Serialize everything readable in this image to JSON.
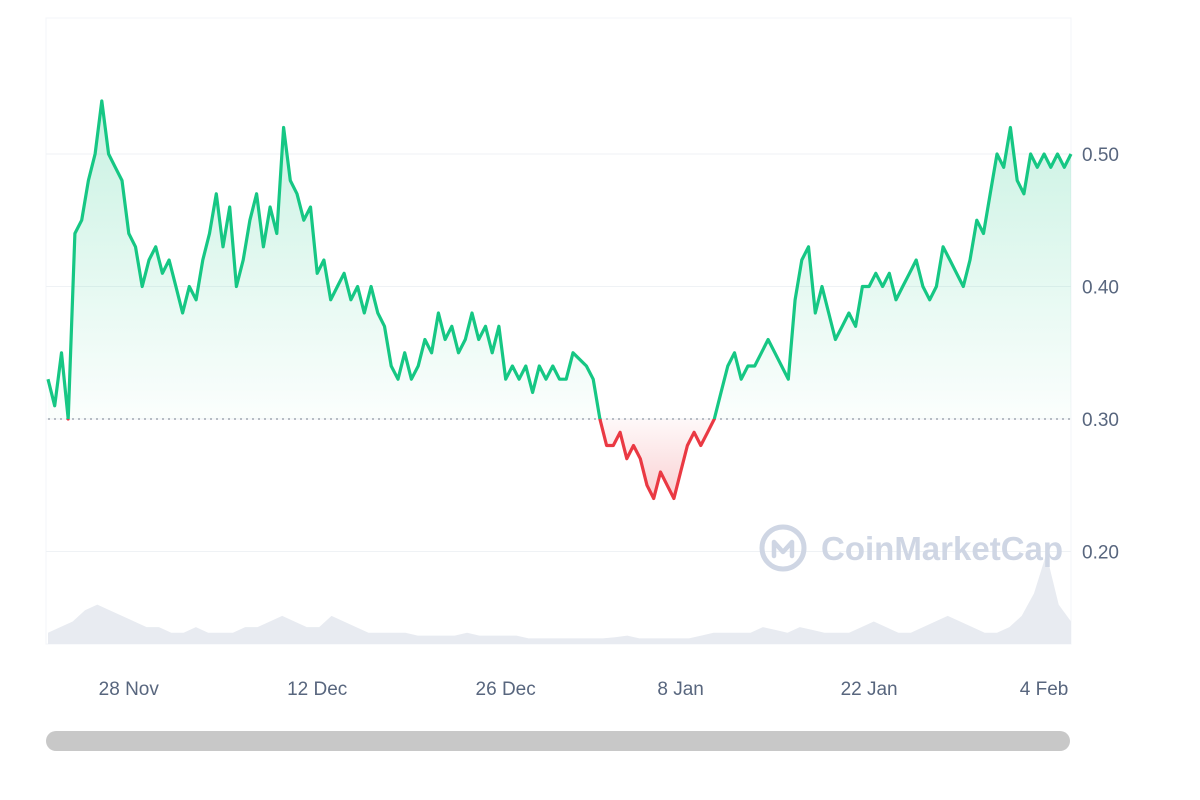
{
  "chart_data": {
    "type": "line",
    "title": "",
    "xlabel": "",
    "ylabel": "",
    "ylim": [
      0.14,
      0.59
    ],
    "baseline": 0.3,
    "grid": true,
    "colors": {
      "up": "#16c784",
      "down": "#ea3943",
      "volume": "#e8ebf1",
      "grid": "#eff2f5"
    },
    "x_ticks": [
      {
        "date": "2023-11-28",
        "label": "28 Nov"
      },
      {
        "date": "2023-12-12",
        "label": "12 Dec"
      },
      {
        "date": "2023-12-26",
        "label": "26 Dec"
      },
      {
        "date": "2024-01-08",
        "label": "8 Jan"
      },
      {
        "date": "2024-01-22",
        "label": "22 Jan"
      },
      {
        "date": "2024-02-04",
        "label": "4 Feb"
      }
    ],
    "y_ticks": [
      {
        "value": 0.5,
        "label": "0.50"
      },
      {
        "value": 0.4,
        "label": "0.40"
      },
      {
        "value": 0.3,
        "label": "0.30"
      },
      {
        "value": 0.2,
        "label": "0.20"
      }
    ],
    "x_range": [
      "2023-11-22",
      "2024-02-06"
    ],
    "series": [
      {
        "values": [
          [
            "2023-11-22",
            0.33
          ],
          [
            "2023-11-22T12",
            0.31
          ],
          [
            "2023-11-23",
            0.35
          ],
          [
            "2023-11-23T12",
            0.3
          ],
          [
            "2023-11-24",
            0.44
          ],
          [
            "2023-11-24T12",
            0.45
          ],
          [
            "2023-11-25",
            0.48
          ],
          [
            "2023-11-25T12",
            0.5
          ],
          [
            "2023-11-26",
            0.54
          ],
          [
            "2023-11-26T12",
            0.5
          ],
          [
            "2023-11-27",
            0.49
          ],
          [
            "2023-11-27T12",
            0.48
          ],
          [
            "2023-11-28",
            0.44
          ],
          [
            "2023-11-28T12",
            0.43
          ],
          [
            "2023-11-29",
            0.4
          ],
          [
            "2023-11-29T12",
            0.42
          ],
          [
            "2023-11-30",
            0.43
          ],
          [
            "2023-11-30T12",
            0.41
          ],
          [
            "2023-12-01",
            0.42
          ],
          [
            "2023-12-01T12",
            0.4
          ],
          [
            "2023-12-02",
            0.38
          ],
          [
            "2023-12-02T12",
            0.4
          ],
          [
            "2023-12-03",
            0.39
          ],
          [
            "2023-12-03T12",
            0.42
          ],
          [
            "2023-12-04",
            0.44
          ],
          [
            "2023-12-04T12",
            0.47
          ],
          [
            "2023-12-05",
            0.43
          ],
          [
            "2023-12-05T12",
            0.46
          ],
          [
            "2023-12-06",
            0.4
          ],
          [
            "2023-12-06T12",
            0.42
          ],
          [
            "2023-12-07",
            0.45
          ],
          [
            "2023-12-07T12",
            0.47
          ],
          [
            "2023-12-08",
            0.43
          ],
          [
            "2023-12-08T12",
            0.46
          ],
          [
            "2023-12-09",
            0.44
          ],
          [
            "2023-12-09T12",
            0.52
          ],
          [
            "2023-12-10",
            0.48
          ],
          [
            "2023-12-10T12",
            0.47
          ],
          [
            "2023-12-11",
            0.45
          ],
          [
            "2023-12-11T12",
            0.46
          ],
          [
            "2023-12-12",
            0.41
          ],
          [
            "2023-12-12T12",
            0.42
          ],
          [
            "2023-12-13",
            0.39
          ],
          [
            "2023-12-13T12",
            0.4
          ],
          [
            "2023-12-14",
            0.41
          ],
          [
            "2023-12-14T12",
            0.39
          ],
          [
            "2023-12-15",
            0.4
          ],
          [
            "2023-12-15T12",
            0.38
          ],
          [
            "2023-12-16",
            0.4
          ],
          [
            "2023-12-16T12",
            0.38
          ],
          [
            "2023-12-17",
            0.37
          ],
          [
            "2023-12-17T12",
            0.34
          ],
          [
            "2023-12-18",
            0.33
          ],
          [
            "2023-12-18T12",
            0.35
          ],
          [
            "2023-12-19",
            0.33
          ],
          [
            "2023-12-19T12",
            0.34
          ],
          [
            "2023-12-20",
            0.36
          ],
          [
            "2023-12-20T12",
            0.35
          ],
          [
            "2023-12-21",
            0.38
          ],
          [
            "2023-12-21T12",
            0.36
          ],
          [
            "2023-12-22",
            0.37
          ],
          [
            "2023-12-22T12",
            0.35
          ],
          [
            "2023-12-23",
            0.36
          ],
          [
            "2023-12-23T12",
            0.38
          ],
          [
            "2023-12-24",
            0.36
          ],
          [
            "2023-12-24T12",
            0.37
          ],
          [
            "2023-12-25",
            0.35
          ],
          [
            "2023-12-25T12",
            0.37
          ],
          [
            "2023-12-26",
            0.33
          ],
          [
            "2023-12-26T12",
            0.34
          ],
          [
            "2023-12-27",
            0.33
          ],
          [
            "2023-12-27T12",
            0.34
          ],
          [
            "2023-12-28",
            0.32
          ],
          [
            "2023-12-28T12",
            0.34
          ],
          [
            "2023-12-29",
            0.33
          ],
          [
            "2023-12-29T12",
            0.34
          ],
          [
            "2023-12-30",
            0.33
          ],
          [
            "2023-12-30T12",
            0.33
          ],
          [
            "2023-12-31",
            0.35
          ],
          [
            "2024-01-01",
            0.34
          ],
          [
            "2024-01-01T12",
            0.33
          ],
          [
            "2024-01-02",
            0.3
          ],
          [
            "2024-01-02T12",
            0.28
          ],
          [
            "2024-01-03",
            0.28
          ],
          [
            "2024-01-03T12",
            0.29
          ],
          [
            "2024-01-04",
            0.27
          ],
          [
            "2024-01-04T12",
            0.28
          ],
          [
            "2024-01-05",
            0.27
          ],
          [
            "2024-01-05T12",
            0.25
          ],
          [
            "2024-01-06",
            0.24
          ],
          [
            "2024-01-06T12",
            0.26
          ],
          [
            "2024-01-07",
            0.25
          ],
          [
            "2024-01-07T12",
            0.24
          ],
          [
            "2024-01-08",
            0.26
          ],
          [
            "2024-01-08T12",
            0.28
          ],
          [
            "2024-01-09",
            0.29
          ],
          [
            "2024-01-09T12",
            0.28
          ],
          [
            "2024-01-10",
            0.29
          ],
          [
            "2024-01-10T12",
            0.3
          ],
          [
            "2024-01-11",
            0.32
          ],
          [
            "2024-01-11T12",
            0.34
          ],
          [
            "2024-01-12",
            0.35
          ],
          [
            "2024-01-12T12",
            0.33
          ],
          [
            "2024-01-13",
            0.34
          ],
          [
            "2024-01-13T12",
            0.34
          ],
          [
            "2024-01-14",
            0.35
          ],
          [
            "2024-01-14T12",
            0.36
          ],
          [
            "2024-01-15",
            0.35
          ],
          [
            "2024-01-15T12",
            0.34
          ],
          [
            "2024-01-16",
            0.33
          ],
          [
            "2024-01-16T12",
            0.39
          ],
          [
            "2024-01-17",
            0.42
          ],
          [
            "2024-01-17T12",
            0.43
          ],
          [
            "2024-01-18",
            0.38
          ],
          [
            "2024-01-18T12",
            0.4
          ],
          [
            "2024-01-19",
            0.38
          ],
          [
            "2024-01-19T12",
            0.36
          ],
          [
            "2024-01-20",
            0.37
          ],
          [
            "2024-01-20T12",
            0.38
          ],
          [
            "2024-01-21",
            0.37
          ],
          [
            "2024-01-21T12",
            0.4
          ],
          [
            "2024-01-22",
            0.4
          ],
          [
            "2024-01-22T12",
            0.41
          ],
          [
            "2024-01-23",
            0.4
          ],
          [
            "2024-01-23T12",
            0.41
          ],
          [
            "2024-01-24",
            0.39
          ],
          [
            "2024-01-24T12",
            0.4
          ],
          [
            "2024-01-25",
            0.41
          ],
          [
            "2024-01-25T12",
            0.42
          ],
          [
            "2024-01-26",
            0.4
          ],
          [
            "2024-01-26T12",
            0.39
          ],
          [
            "2024-01-27",
            0.4
          ],
          [
            "2024-01-27T12",
            0.43
          ],
          [
            "2024-01-28",
            0.42
          ],
          [
            "2024-01-28T12",
            0.41
          ],
          [
            "2024-01-29",
            0.4
          ],
          [
            "2024-01-29T12",
            0.42
          ],
          [
            "2024-01-30",
            0.45
          ],
          [
            "2024-01-30T12",
            0.44
          ],
          [
            "2024-01-31",
            0.47
          ],
          [
            "2024-01-31T12",
            0.5
          ],
          [
            "2024-02-01",
            0.49
          ],
          [
            "2024-02-01T12",
            0.52
          ],
          [
            "2024-02-02",
            0.48
          ],
          [
            "2024-02-02T12",
            0.47
          ],
          [
            "2024-02-03",
            0.5
          ],
          [
            "2024-02-03T12",
            0.49
          ],
          [
            "2024-02-04",
            0.5
          ],
          [
            "2024-02-04T12",
            0.49
          ],
          [
            "2024-02-05",
            0.5
          ],
          [
            "2024-02-05T12",
            0.49
          ],
          [
            "2024-02-06",
            0.5
          ]
        ]
      }
    ],
    "volume": [
      2,
      3,
      4,
      6,
      7,
      6,
      5,
      4,
      3,
      3,
      2,
      2,
      3,
      2,
      2,
      2,
      3,
      3,
      4,
      5,
      4,
      3,
      3,
      5,
      4,
      3,
      2,
      2,
      2,
      2,
      1.5,
      1.5,
      1.5,
      1.5,
      2,
      1.5,
      1.5,
      1.5,
      1.5,
      1,
      1,
      1,
      1,
      1,
      1,
      1,
      1.2,
      1.5,
      1,
      1,
      1,
      1,
      1,
      1.5,
      2,
      2,
      2,
      2,
      3,
      2.5,
      2,
      3,
      2.5,
      2,
      2,
      2,
      3,
      4,
      3,
      2,
      2,
      3,
      4,
      5,
      4,
      3,
      2,
      2,
      3,
      5,
      9,
      16,
      7,
      4
    ]
  },
  "watermark": {
    "icon": "coinmarketcap-logo-icon",
    "text": "CoinMarketCap"
  }
}
